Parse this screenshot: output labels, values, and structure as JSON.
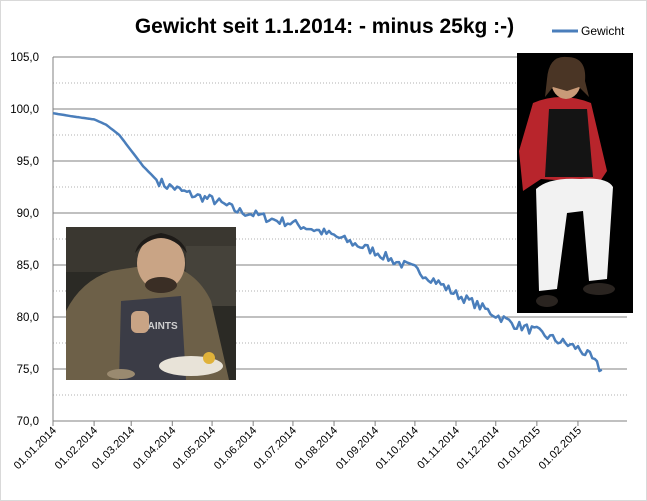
{
  "chart_data": {
    "type": "line",
    "title": "Gewicht seit 1.1.2014: - minus 25kg :-)",
    "xlabel": "",
    "ylabel": "",
    "ylim": [
      70,
      105
    ],
    "y_ticks": [
      "70,0",
      "75,0",
      "80,0",
      "85,0",
      "90,0",
      "95,0",
      "100,0",
      "105,0"
    ],
    "x_ticks": [
      "01.01.2014",
      "01.02.2014",
      "01.03.2014",
      "01.04.2014",
      "01.05.2014",
      "01.06.2014",
      "01.07.2014",
      "01.08.2014",
      "01.09.2014",
      "01.10.2014",
      "01.11.2014",
      "01.12.2014",
      "01.01.2015",
      "01.02.2015"
    ],
    "grid": true,
    "legend_position": "top-right",
    "series": [
      {
        "name": "Gewicht",
        "color": "#4a7ebb",
        "x": [
          "2014-01-01",
          "2014-01-15",
          "2014-02-01",
          "2014-02-10",
          "2014-02-20",
          "2014-03-01",
          "2014-03-10",
          "2014-03-20",
          "2014-03-28",
          "2014-04-01",
          "2014-04-10",
          "2014-04-20",
          "2014-05-01",
          "2014-05-10",
          "2014-05-20",
          "2014-06-01",
          "2014-06-15",
          "2014-07-01",
          "2014-07-15",
          "2014-08-01",
          "2014-08-15",
          "2014-09-01",
          "2014-09-15",
          "2014-10-01",
          "2014-10-15",
          "2014-11-01",
          "2014-11-15",
          "2014-12-01",
          "2014-12-15",
          "2015-01-01",
          "2015-01-15",
          "2015-02-01",
          "2015-02-10",
          "2015-02-19"
        ],
        "values": [
          99.6,
          99.3,
          99.0,
          98.5,
          97.5,
          96.0,
          94.5,
          93.2,
          92.6,
          92.5,
          92.0,
          91.6,
          91.3,
          90.8,
          90.2,
          89.9,
          89.4,
          89.0,
          88.5,
          87.8,
          87.1,
          86.3,
          85.4,
          84.6,
          83.6,
          82.2,
          81.3,
          80.2,
          79.3,
          78.6,
          77.8,
          77.0,
          76.2,
          74.8
        ]
      }
    ]
  },
  "photos": [
    {
      "name": "photo-before",
      "icon": "photo-man-sitting-at-table",
      "colors": [
        "#2b2a25",
        "#6d6048",
        "#3b3c46",
        "#c9b79a"
      ]
    },
    {
      "name": "photo-after",
      "icon": "photo-man-sitting-on-stool",
      "colors": [
        "#000000",
        "#b8252c",
        "#f2f2f2",
        "#1a1a1a"
      ]
    }
  ]
}
